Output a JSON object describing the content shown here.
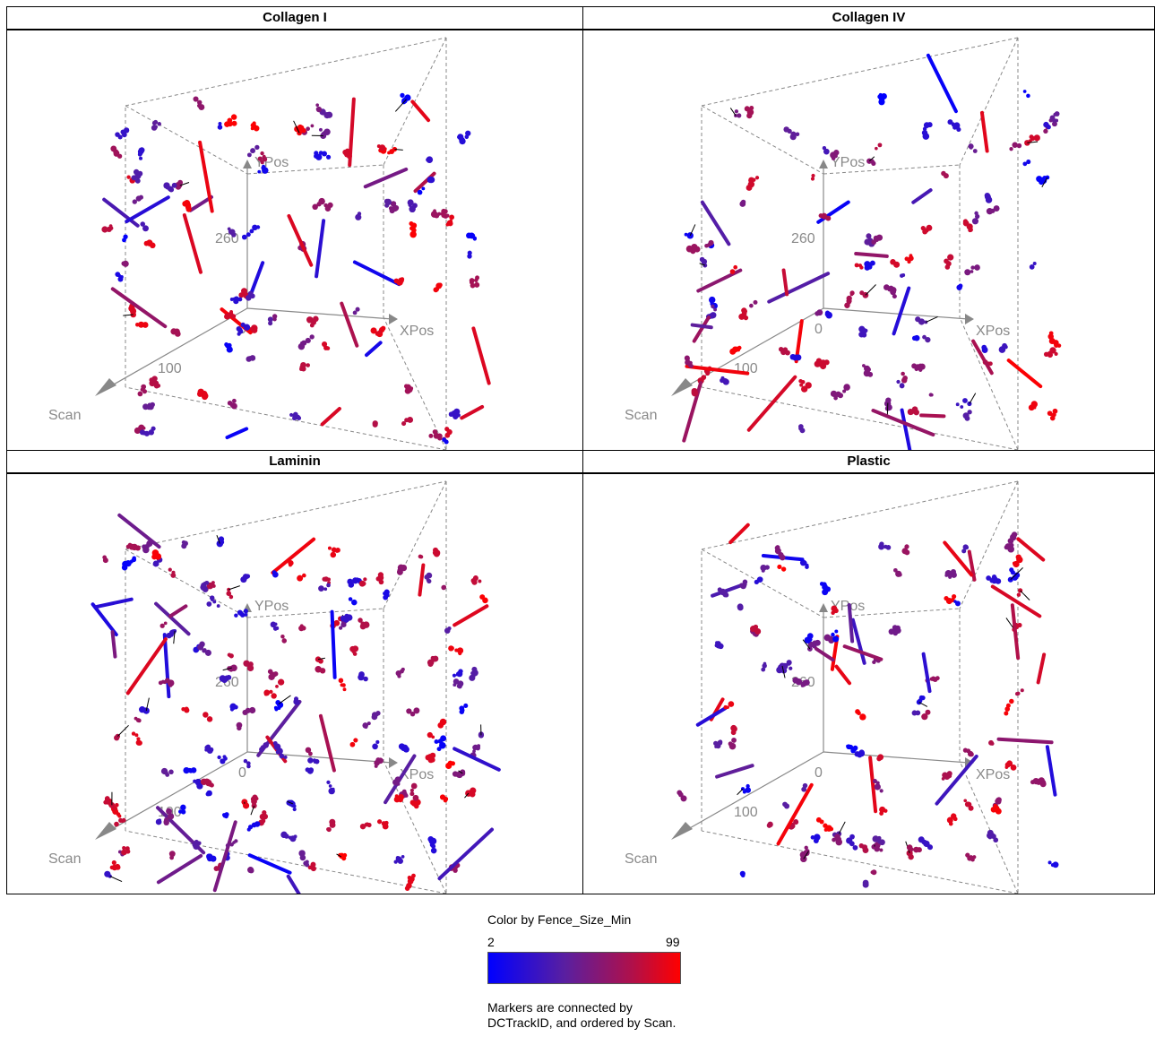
{
  "chart_data": [
    {
      "type": "scatter",
      "title": "Collagen I",
      "axes": {
        "x": "XPos",
        "y": "YPos",
        "z": "Scan"
      },
      "ticks": {
        "x": [
          "0"
        ],
        "y": [
          "260"
        ],
        "z": [
          "100"
        ]
      }
    },
    {
      "type": "scatter",
      "title": "Collagen IV",
      "axes": {
        "x": "XPos",
        "y": "YPos",
        "z": "Scan"
      },
      "ticks": {
        "x": [
          "0"
        ],
        "y": [
          "260"
        ],
        "z": [
          "100"
        ]
      }
    },
    {
      "type": "scatter",
      "title": "Laminin",
      "axes": {
        "x": "XPos",
        "y": "YPos",
        "z": "Scan"
      },
      "ticks": {
        "x": [
          "0"
        ],
        "y": [
          "260"
        ],
        "z": [
          "100"
        ]
      }
    },
    {
      "type": "scatter",
      "title": "Plastic",
      "axes": {
        "x": "XPos",
        "y": "YPos",
        "z": "Scan"
      },
      "ticks": {
        "x": [
          "0"
        ],
        "y": [
          "260"
        ],
        "z": [
          "100"
        ]
      }
    }
  ],
  "legend": {
    "title": "Color by Fence_Size_Min",
    "min": "2",
    "max": "99",
    "note": "Markers are connected by DCTrackID, and ordered by Scan.",
    "colors": [
      "#0000ff",
      "#ff0000"
    ]
  }
}
